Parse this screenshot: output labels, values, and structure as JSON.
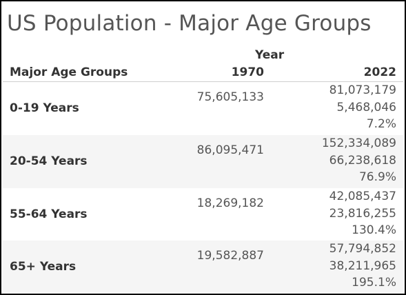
{
  "chart_data": {
    "type": "table",
    "title": "US Population - Major Age Groups",
    "column_group_header": "Year",
    "row_header": "Major Age Groups",
    "columns": [
      "1970",
      "2022"
    ],
    "rows": [
      {
        "group": "0-19 Years",
        "v1970": "75,605,133",
        "v2022": "81,073,179",
        "diff": "5,468,046",
        "pct": "7.2%"
      },
      {
        "group": "20-54 Years",
        "v1970": "86,095,471",
        "v2022": "152,334,089",
        "diff": "66,238,618",
        "pct": "76.9%"
      },
      {
        "group": "55-64 Years",
        "v1970": "18,269,182",
        "v2022": "42,085,437",
        "diff": "23,816,255",
        "pct": "130.4%"
      },
      {
        "group": "65+ Years",
        "v1970": "19,582,887",
        "v2022": "57,794,852",
        "diff": "38,211,965",
        "pct": "195.1%"
      }
    ]
  },
  "colors": {
    "shade": "#f5f5f5",
    "text": "#333333",
    "title": "#555555"
  }
}
